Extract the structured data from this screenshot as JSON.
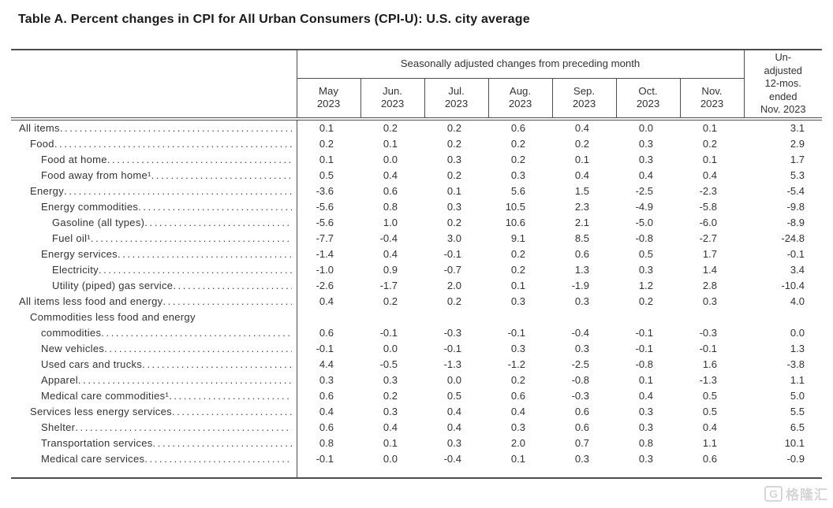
{
  "title": "Table A. Percent changes in CPI for All Urban Consumers (CPI-U): U.S. city average",
  "table": {
    "group_header": "Seasonally adjusted changes from preceding month",
    "unadjusted_header": "Un-\nadjusted\n12-mos.\nended\nNov. 2023",
    "columns": [
      "May\n2023",
      "Jun.\n2023",
      "Jul.\n2023",
      "Aug.\n2023",
      "Sep.\n2023",
      "Oct.\n2023",
      "Nov.\n2023"
    ],
    "rows": [
      {
        "label": "All items",
        "indent": 0,
        "values": [
          "0.1",
          "0.2",
          "0.2",
          "0.6",
          "0.4",
          "0.0",
          "0.1",
          "3.1"
        ]
      },
      {
        "label": "Food",
        "indent": 1,
        "values": [
          "0.2",
          "0.1",
          "0.2",
          "0.2",
          "0.2",
          "0.3",
          "0.2",
          "2.9"
        ]
      },
      {
        "label": "Food at home",
        "indent": 2,
        "values": [
          "0.1",
          "0.0",
          "0.3",
          "0.2",
          "0.1",
          "0.3",
          "0.1",
          "1.7"
        ]
      },
      {
        "label": "Food away from home¹",
        "indent": 2,
        "values": [
          "0.5",
          "0.4",
          "0.2",
          "0.3",
          "0.4",
          "0.4",
          "0.4",
          "5.3"
        ]
      },
      {
        "label": "Energy",
        "indent": 1,
        "values": [
          "-3.6",
          "0.6",
          "0.1",
          "5.6",
          "1.5",
          "-2.5",
          "-2.3",
          "-5.4"
        ]
      },
      {
        "label": "Energy commodities",
        "indent": 2,
        "values": [
          "-5.6",
          "0.8",
          "0.3",
          "10.5",
          "2.3",
          "-4.9",
          "-5.8",
          "-9.8"
        ]
      },
      {
        "label": "Gasoline (all types)",
        "indent": 3,
        "values": [
          "-5.6",
          "1.0",
          "0.2",
          "10.6",
          "2.1",
          "-5.0",
          "-6.0",
          "-8.9"
        ]
      },
      {
        "label": "Fuel oil¹",
        "indent": 3,
        "values": [
          "-7.7",
          "-0.4",
          "3.0",
          "9.1",
          "8.5",
          "-0.8",
          "-2.7",
          "-24.8"
        ]
      },
      {
        "label": "Energy services",
        "indent": 2,
        "values": [
          "-1.4",
          "0.4",
          "-0.1",
          "0.2",
          "0.6",
          "0.5",
          "1.7",
          "-0.1"
        ]
      },
      {
        "label": "Electricity",
        "indent": 3,
        "values": [
          "-1.0",
          "0.9",
          "-0.7",
          "0.2",
          "1.3",
          "0.3",
          "1.4",
          "3.4"
        ]
      },
      {
        "label": "Utility (piped) gas service",
        "indent": 3,
        "values": [
          "-2.6",
          "-1.7",
          "2.0",
          "0.1",
          "-1.9",
          "1.2",
          "2.8",
          "-10.4"
        ]
      },
      {
        "label": "All items less food and energy",
        "indent": 0,
        "values": [
          "0.4",
          "0.2",
          "0.2",
          "0.3",
          "0.3",
          "0.2",
          "0.3",
          "4.0"
        ]
      },
      {
        "label_line1": "Commodities less food and energy",
        "label": "commodities",
        "indent": 1,
        "values": [
          "0.6",
          "-0.1",
          "-0.3",
          "-0.1",
          "-0.4",
          "-0.1",
          "-0.3",
          "0.0"
        ]
      },
      {
        "label": "New vehicles",
        "indent": 2,
        "values": [
          "-0.1",
          "0.0",
          "-0.1",
          "0.3",
          "0.3",
          "-0.1",
          "-0.1",
          "1.3"
        ]
      },
      {
        "label": "Used cars and trucks",
        "indent": 2,
        "values": [
          "4.4",
          "-0.5",
          "-1.3",
          "-1.2",
          "-2.5",
          "-0.8",
          "1.6",
          "-3.8"
        ]
      },
      {
        "label": "Apparel",
        "indent": 2,
        "values": [
          "0.3",
          "0.3",
          "0.0",
          "0.2",
          "-0.8",
          "0.1",
          "-1.3",
          "1.1"
        ]
      },
      {
        "label": "Medical care commodities¹",
        "indent": 2,
        "values": [
          "0.6",
          "0.2",
          "0.5",
          "0.6",
          "-0.3",
          "0.4",
          "0.5",
          "5.0"
        ]
      },
      {
        "label": "Services less energy services",
        "indent": 1,
        "values": [
          "0.4",
          "0.3",
          "0.4",
          "0.4",
          "0.6",
          "0.3",
          "0.5",
          "5.5"
        ]
      },
      {
        "label": "Shelter",
        "indent": 2,
        "values": [
          "0.6",
          "0.4",
          "0.4",
          "0.3",
          "0.6",
          "0.3",
          "0.4",
          "6.5"
        ]
      },
      {
        "label": "Transportation services",
        "indent": 2,
        "values": [
          "0.8",
          "0.1",
          "0.3",
          "2.0",
          "0.7",
          "0.8",
          "1.1",
          "10.1"
        ]
      },
      {
        "label": "Medical care services",
        "indent": 2,
        "values": [
          "-0.1",
          "0.0",
          "-0.4",
          "0.1",
          "0.3",
          "0.3",
          "0.6",
          "-0.9"
        ]
      }
    ]
  },
  "watermark": {
    "logo_letter": "G",
    "text": "格隆汇"
  }
}
